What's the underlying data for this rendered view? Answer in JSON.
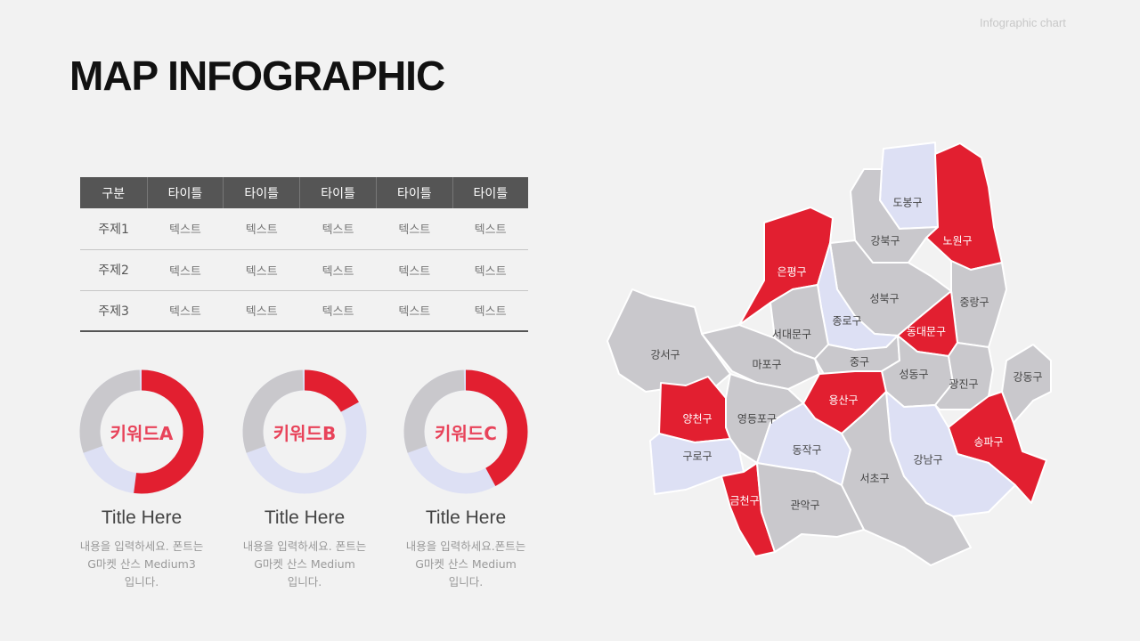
{
  "header": {
    "tag": "Infographic chart",
    "title": "MAP INFOGRAPHIC"
  },
  "table": {
    "headers": [
      "구분",
      "타이틀",
      "타이틀",
      "타이틀",
      "타이틀",
      "타이틀"
    ],
    "rows": [
      [
        "주제1",
        "텍스트",
        "텍스트",
        "텍스트",
        "텍스트",
        "텍스트"
      ],
      [
        "주제2",
        "텍스트",
        "텍스트",
        "텍스트",
        "텍스트",
        "텍스트"
      ],
      [
        "주제3",
        "텍스트",
        "텍스트",
        "텍스트",
        "텍스트",
        "텍스트"
      ]
    ]
  },
  "cards": [
    {
      "keyword": "키워드A",
      "percent": 52,
      "title": "Title Here",
      "desc": [
        "내용을 입력하세요. 폰트는",
        "G마켓 산스 Medium3",
        "입니다."
      ]
    },
    {
      "keyword": "키워드B",
      "percent": 17,
      "title": "Title Here",
      "desc": [
        "내용을 입력하세요. 폰트는",
        "G마켓 산스 Medium",
        "입니다."
      ]
    },
    {
      "keyword": "키워드C",
      "percent": 42,
      "title": "Title Here",
      "desc": [
        "내용을 입력하세요.폰트는",
        "G마켓 산스 Medium",
        "입니다."
      ]
    }
  ],
  "colors": {
    "accent": "#e21f30",
    "donut_track_gray": "#c9c8cc",
    "donut_track_light": "#dde0f4",
    "keyword_text": "#e8435a"
  },
  "map": {
    "districts": {
      "dobong": {
        "label": "도봉구",
        "highlight": "light"
      },
      "nowon": {
        "label": "노원구",
        "highlight": "red"
      },
      "gangbuk": {
        "label": "강북구",
        "highlight": "gray"
      },
      "eunpyeong": {
        "label": "은평구",
        "highlight": "red"
      },
      "seongbuk": {
        "label": "성북구",
        "highlight": "gray"
      },
      "jungnang": {
        "label": "중랑구",
        "highlight": "gray"
      },
      "jongno": {
        "label": "종로구",
        "highlight": "light"
      },
      "dongdaemun": {
        "label": "동대문구",
        "highlight": "red"
      },
      "seodaemun": {
        "label": "서대문구",
        "highlight": "gray"
      },
      "gangseo": {
        "label": "강서구",
        "highlight": "gray"
      },
      "mapo": {
        "label": "마포구",
        "highlight": "gray"
      },
      "junggu": {
        "label": "중구",
        "highlight": "gray"
      },
      "seongdong": {
        "label": "성동구",
        "highlight": "gray"
      },
      "gwangjin": {
        "label": "광진구",
        "highlight": "gray"
      },
      "gangdong": {
        "label": "강동구",
        "highlight": "gray"
      },
      "yongsan": {
        "label": "용산구",
        "highlight": "red"
      },
      "yangcheon": {
        "label": "양천구",
        "highlight": "red"
      },
      "yeongdeungpo": {
        "label": "영등포구",
        "highlight": "gray"
      },
      "songpa": {
        "label": "송파구",
        "highlight": "red"
      },
      "guro": {
        "label": "구로구",
        "highlight": "light"
      },
      "dongjak": {
        "label": "동작구",
        "highlight": "light"
      },
      "gangnam": {
        "label": "강남구",
        "highlight": "light"
      },
      "seocho": {
        "label": "서초구",
        "highlight": "gray"
      },
      "geumcheon": {
        "label": "금천구",
        "highlight": "red"
      },
      "gwanak": {
        "label": "관악구",
        "highlight": "gray"
      }
    }
  }
}
